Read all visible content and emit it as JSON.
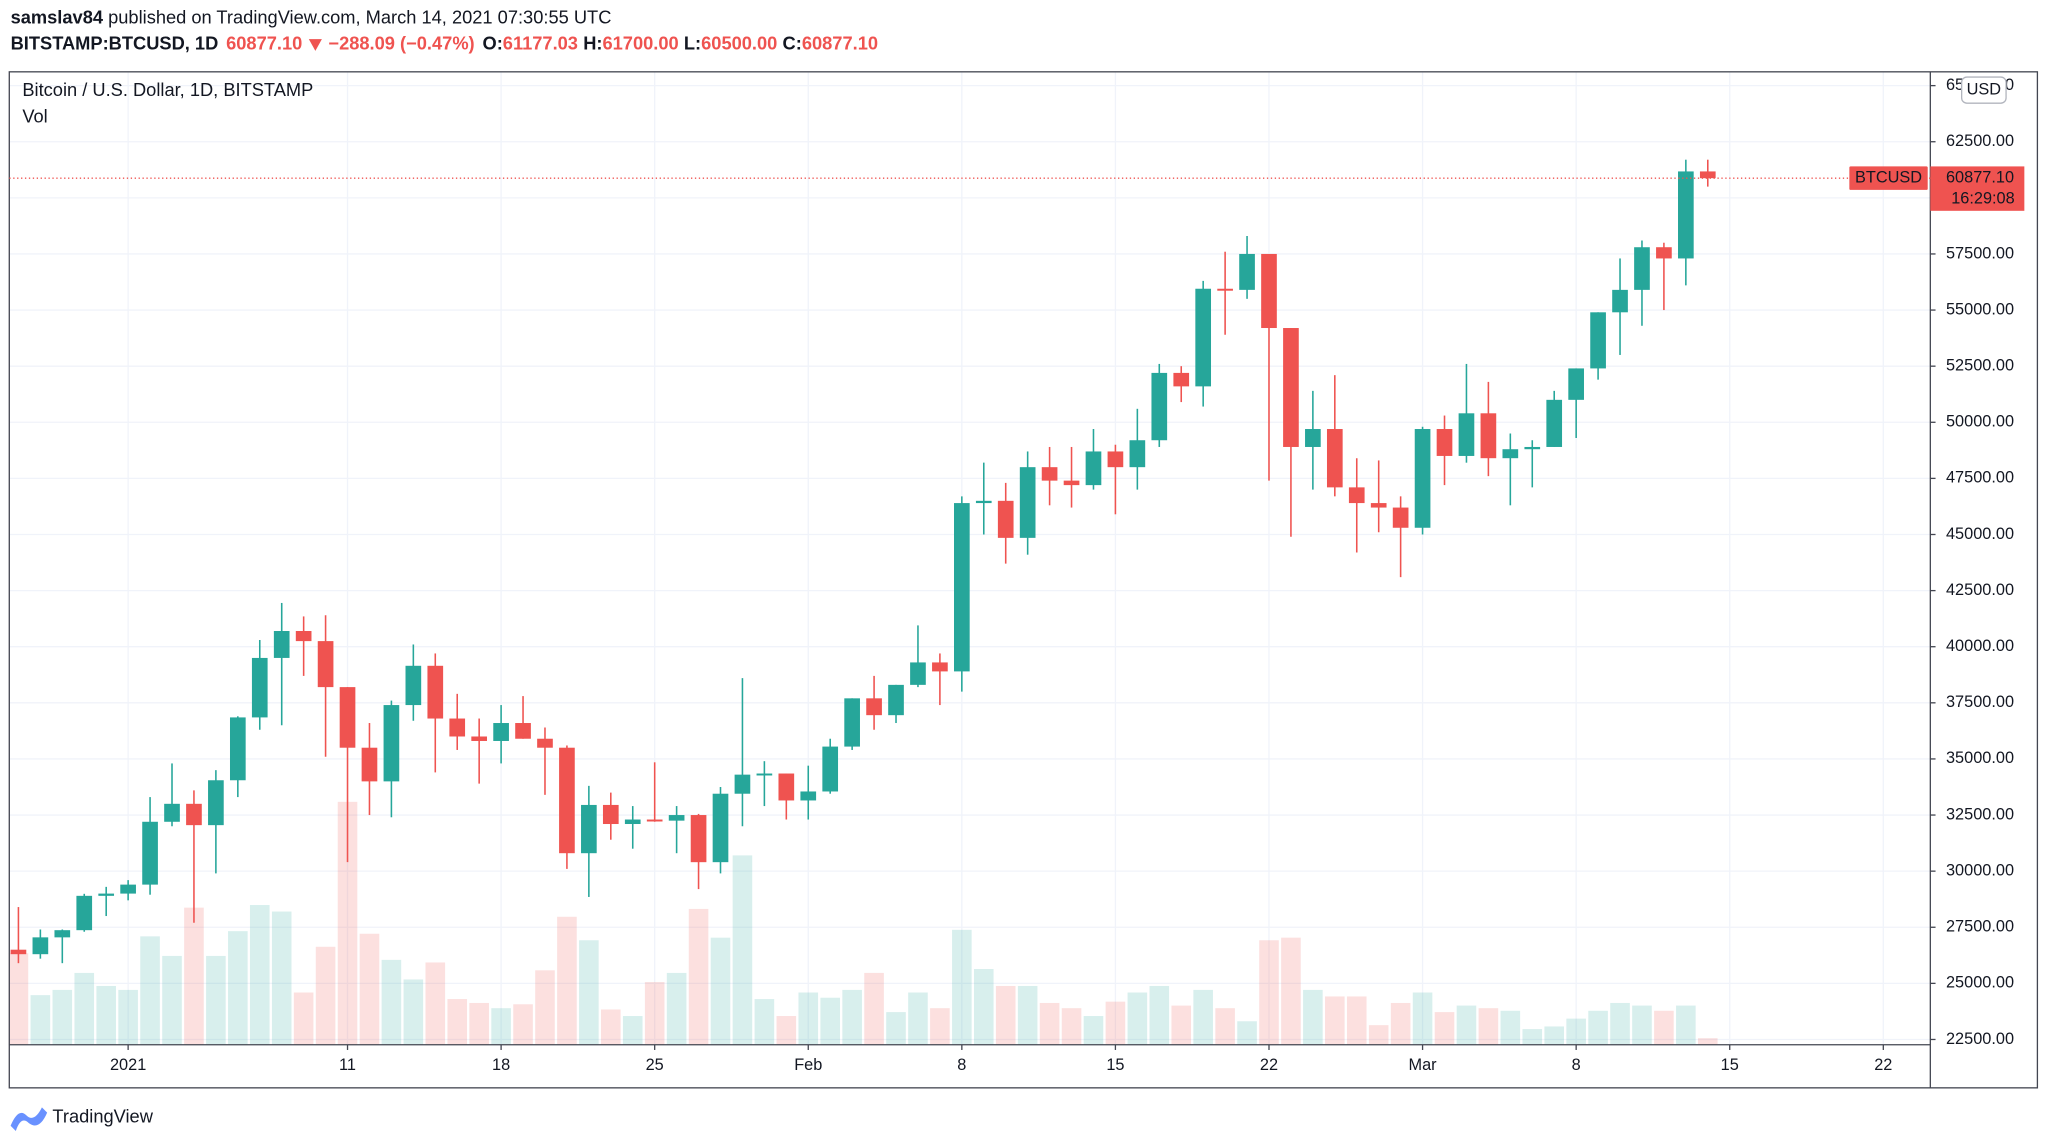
{
  "header": {
    "publisher": "samslav84",
    "published": "published on TradingView.com, March 14, 2021 07:30:55 UTC",
    "symbol": "BITSTAMP:BTCUSD, 1D",
    "last": "60877.10",
    "change": "−288.09 (−0.47%)",
    "o_label": "O:",
    "open": "61177.03",
    "h_label": "H:",
    "high": "61700.00",
    "l_label": "L:",
    "low": "60500.00",
    "c_label": "C:",
    "close": "60877.10"
  },
  "chart_data": {
    "type": "candlestick",
    "title": "Bitcoin / U.S. Dollar, 1D, BITSTAMP",
    "volume_label": "Vol",
    "currency": "USD",
    "x": [
      "2020-12-27",
      "2020-12-28",
      "2020-12-29",
      "2020-12-30",
      "2020-12-31",
      "2021-01-01",
      "2021-01-02",
      "2021-01-03",
      "2021-01-04",
      "2021-01-05",
      "2021-01-06",
      "2021-01-07",
      "2021-01-08",
      "2021-01-09",
      "2021-01-10",
      "2021-01-11",
      "2021-01-12",
      "2021-01-13",
      "2021-01-14",
      "2021-01-15",
      "2021-01-16",
      "2021-01-17",
      "2021-01-18",
      "2021-01-19",
      "2021-01-20",
      "2021-01-21",
      "2021-01-22",
      "2021-01-23",
      "2021-01-24",
      "2021-01-25",
      "2021-01-26",
      "2021-01-27",
      "2021-01-28",
      "2021-01-29",
      "2021-01-30",
      "2021-01-31",
      "2021-02-01",
      "2021-02-02",
      "2021-02-03",
      "2021-02-04",
      "2021-02-05",
      "2021-02-06",
      "2021-02-07",
      "2021-02-08",
      "2021-02-09",
      "2021-02-10",
      "2021-02-11",
      "2021-02-12",
      "2021-02-13",
      "2021-02-14",
      "2021-02-15",
      "2021-02-16",
      "2021-02-17",
      "2021-02-18",
      "2021-02-19",
      "2021-02-20",
      "2021-02-21",
      "2021-02-22",
      "2021-02-23",
      "2021-02-24",
      "2021-02-25",
      "2021-02-26",
      "2021-02-27",
      "2021-02-28",
      "2021-03-01",
      "2021-03-02",
      "2021-03-03",
      "2021-03-04",
      "2021-03-05",
      "2021-03-06",
      "2021-03-07",
      "2021-03-08",
      "2021-03-09",
      "2021-03-10",
      "2021-03-11",
      "2021-03-12",
      "2021-03-13",
      "2021-03-14"
    ],
    "open": [
      26500,
      26300,
      27050,
      27370,
      28900,
      29000,
      29400,
      32200,
      33000,
      32050,
      34050,
      36850,
      39500,
      40700,
      40250,
      38200,
      35500,
      34000,
      37400,
      39150,
      36800,
      36000,
      35800,
      36600,
      35900,
      35500,
      30800,
      32950,
      32100,
      32300,
      32250,
      32500,
      30400,
      33450,
      34300,
      34350,
      33150,
      33550,
      35550,
      37700,
      36950,
      38300,
      39300,
      38900,
      46400,
      46500,
      44850,
      48000,
      47400,
      47200,
      48700,
      48000,
      49200,
      52200,
      51600,
      55950,
      55900,
      57500,
      54200,
      48900,
      49700,
      47100,
      46400,
      46200,
      45300,
      49700,
      48500,
      50400,
      48400,
      48800,
      48900,
      51000,
      52400,
      54900,
      55900,
      57800,
      57300,
      61177.03
    ],
    "high": [
      28400,
      27400,
      27400,
      28990,
      29300,
      29600,
      33300,
      34800,
      33600,
      34500,
      36900,
      40300,
      41950,
      41350,
      41400,
      38200,
      36600,
      37600,
      40100,
      39700,
      37900,
      36800,
      37400,
      37800,
      36400,
      35600,
      33800,
      33500,
      32900,
      34850,
      32900,
      32550,
      33750,
      38600,
      34900,
      34350,
      34700,
      35900,
      37700,
      38700,
      38300,
      40950,
      39700,
      46700,
      48200,
      47300,
      48700,
      48900,
      48900,
      49700,
      49000,
      50600,
      52600,
      52500,
      56300,
      57600,
      58300,
      57500,
      54200,
      51400,
      52100,
      48400,
      48300,
      46700,
      49800,
      50300,
      52600,
      51800,
      49500,
      49200,
      51400,
      52400,
      54900,
      57300,
      58100,
      58000,
      61700,
      61700
    ],
    "low": [
      25900,
      26100,
      25900,
      27300,
      28000,
      28700,
      28950,
      32000,
      27700,
      29900,
      33300,
      36300,
      36500,
      38700,
      35100,
      30400,
      32500,
      32400,
      36700,
      34400,
      35400,
      33900,
      34800,
      35900,
      33400,
      30100,
      28850,
      31400,
      31000,
      32200,
      30800,
      29200,
      29900,
      32000,
      32900,
      32300,
      32300,
      33450,
      35400,
      36300,
      36600,
      38200,
      37400,
      38000,
      45000,
      43700,
      44100,
      46300,
      46200,
      47000,
      45900,
      47000,
      48900,
      50900,
      50700,
      53900,
      55500,
      47400,
      44900,
      47000,
      46700,
      44200,
      45100,
      43100,
      45000,
      47200,
      48200,
      47600,
      46300,
      47100,
      48900,
      49300,
      51900,
      53000,
      54300,
      55000,
      56100,
      60500
    ],
    "close": [
      26300,
      27050,
      27370,
      28900,
      29000,
      29400,
      32200,
      33000,
      32050,
      34050,
      36850,
      39500,
      40700,
      40250,
      38200,
      35500,
      34000,
      37400,
      39150,
      36800,
      36000,
      35800,
      36600,
      35900,
      35500,
      30800,
      32950,
      32100,
      32300,
      32250,
      32500,
      30400,
      33450,
      34300,
      34350,
      33150,
      33550,
      35550,
      37700,
      36950,
      38300,
      39300,
      38900,
      46400,
      46500,
      44850,
      48000,
      47400,
      47200,
      48700,
      48000,
      49200,
      52200,
      51600,
      55950,
      55900,
      57500,
      54200,
      48900,
      49700,
      47100,
      46400,
      46200,
      45300,
      49700,
      48500,
      50400,
      48400,
      48800,
      48900,
      51000,
      52400,
      54900,
      55900,
      57800,
      57300,
      61177.03,
      60877.1
    ],
    "volume": [
      14000,
      7600,
      8400,
      11000,
      9000,
      8400,
      16600,
      13600,
      21000,
      13600,
      17400,
      21400,
      20400,
      8000,
      15000,
      37200,
      17000,
      13000,
      10000,
      12600,
      7000,
      6400,
      5600,
      6200,
      11400,
      19600,
      16000,
      5400,
      4400,
      9600,
      11000,
      20800,
      16400,
      29000,
      7000,
      4400,
      8000,
      7200,
      8400,
      11000,
      5000,
      8000,
      5600,
      17600,
      11600,
      9000,
      9000,
      6400,
      5600,
      4400,
      6600,
      8000,
      9000,
      6000,
      8400,
      5600,
      3600,
      16000,
      16400,
      8400,
      7400,
      7400,
      3000,
      6400,
      8000,
      5000,
      6000,
      5600,
      5200,
      2400,
      2800,
      4000,
      5200,
      6400,
      6000,
      5200,
      6000,
      1000
    ],
    "up_color": "#26a69a",
    "down_color": "#ef5350",
    "ylim": [
      22265,
      65615
    ],
    "yticks": [
      {
        "value": 22500,
        "label": "22500.00"
      },
      {
        "value": 25000,
        "label": "25000.00"
      },
      {
        "value": 27500,
        "label": "27500.00"
      },
      {
        "value": 30000,
        "label": "30000.00"
      },
      {
        "value": 32500,
        "label": "32500.00"
      },
      {
        "value": 35000,
        "label": "35000.00"
      },
      {
        "value": 37500,
        "label": "37500.00"
      },
      {
        "value": 40000,
        "label": "40000.00"
      },
      {
        "value": 42500,
        "label": "42500.00"
      },
      {
        "value": 45000,
        "label": "45000.00"
      },
      {
        "value": 47500,
        "label": "47500.00"
      },
      {
        "value": 50000,
        "label": "50000.00"
      },
      {
        "value": 52500,
        "label": "52500.00"
      },
      {
        "value": 55000,
        "label": "55000.00"
      },
      {
        "value": 57500,
        "label": "57500.00"
      },
      {
        "value": 60000,
        "label": "60000.00"
      },
      {
        "value": 62500,
        "label": "62500.00"
      },
      {
        "value": 65000,
        "label": "65000.00"
      }
    ],
    "xticks": [
      {
        "value": "2021-01-01",
        "label": "2021"
      },
      {
        "value": "2021-01-11",
        "label": "11"
      },
      {
        "value": "2021-01-18",
        "label": "18"
      },
      {
        "value": "2021-01-25",
        "label": "25"
      },
      {
        "value": "2021-02-01",
        "label": "Feb"
      },
      {
        "value": "2021-02-08",
        "label": "8"
      },
      {
        "value": "2021-02-15",
        "label": "15"
      },
      {
        "value": "2021-02-22",
        "label": "22"
      },
      {
        "value": "2021-03-01",
        "label": "Mar"
      },
      {
        "value": "2021-03-08",
        "label": "8"
      },
      {
        "value": "2021-03-15",
        "label": "15"
      },
      {
        "value": "2021-03-22",
        "label": "22"
      }
    ],
    "grid": true,
    "last_price": {
      "symbol": "BTCUSD",
      "value": 60877.1,
      "label": "60877.10",
      "countdown": "16:29:08"
    }
  },
  "logo": "TradingView"
}
